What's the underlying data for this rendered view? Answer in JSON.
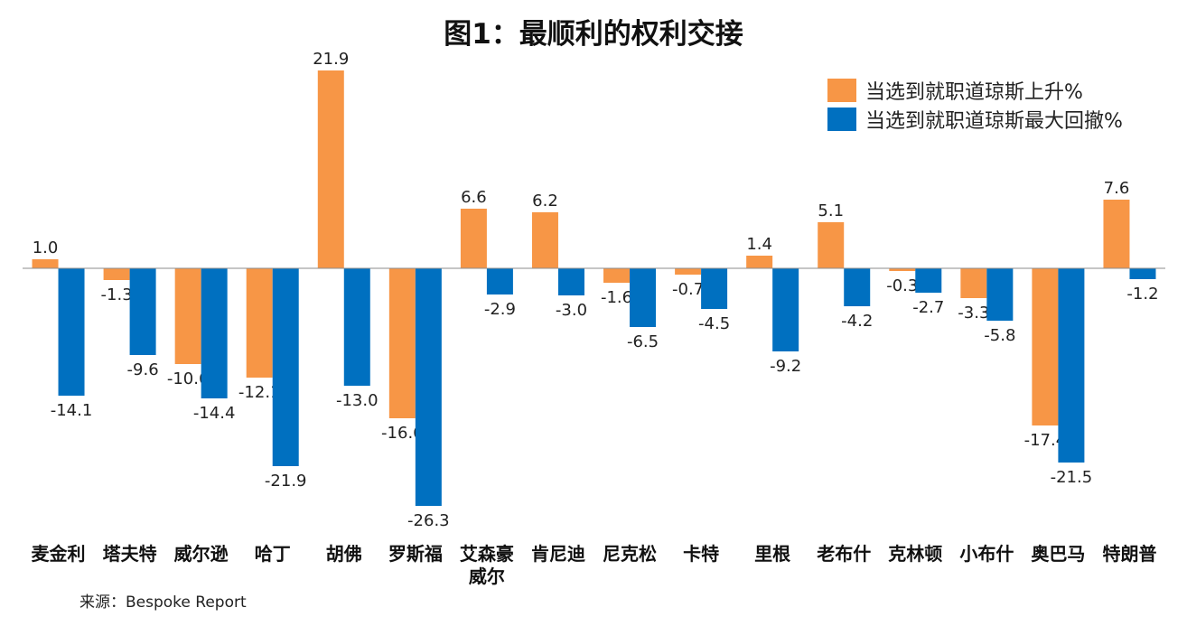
{
  "chart_data": {
    "type": "bar",
    "title": "图1：最顺利的权利交接",
    "xlabel": "",
    "ylabel": "",
    "ylim": [
      -26.3,
      21.9
    ],
    "grid": false,
    "legend_position": "top-right",
    "categories": [
      "麦金利",
      "塔夫特",
      "威尔逊",
      "哈丁",
      "胡佛",
      "罗斯福",
      "艾森豪威尔",
      "肯尼迪",
      "尼克松",
      "卡特",
      "里根",
      "老布什",
      "克林顿",
      "小布什",
      "奥巴马",
      "特朗普"
    ],
    "series": [
      {
        "name": "当选到就职道琼斯上升%",
        "color": "#F79646",
        "values": [
          1.0,
          -1.3,
          -10.6,
          -12.1,
          21.9,
          -16.6,
          6.6,
          6.2,
          -1.6,
          -0.7,
          1.4,
          5.1,
          -0.3,
          -3.3,
          -17.4,
          7.6
        ]
      },
      {
        "name": "当选到就职道琼斯最大回撤%",
        "color": "#0070C0",
        "values": [
          -14.1,
          -9.6,
          -14.4,
          -21.9,
          -13.0,
          -26.3,
          -2.9,
          -3.0,
          -6.5,
          -4.5,
          -9.2,
          -4.2,
          -2.7,
          -5.8,
          -21.5,
          -1.2
        ]
      }
    ]
  },
  "source": "来源：Bespoke Report"
}
